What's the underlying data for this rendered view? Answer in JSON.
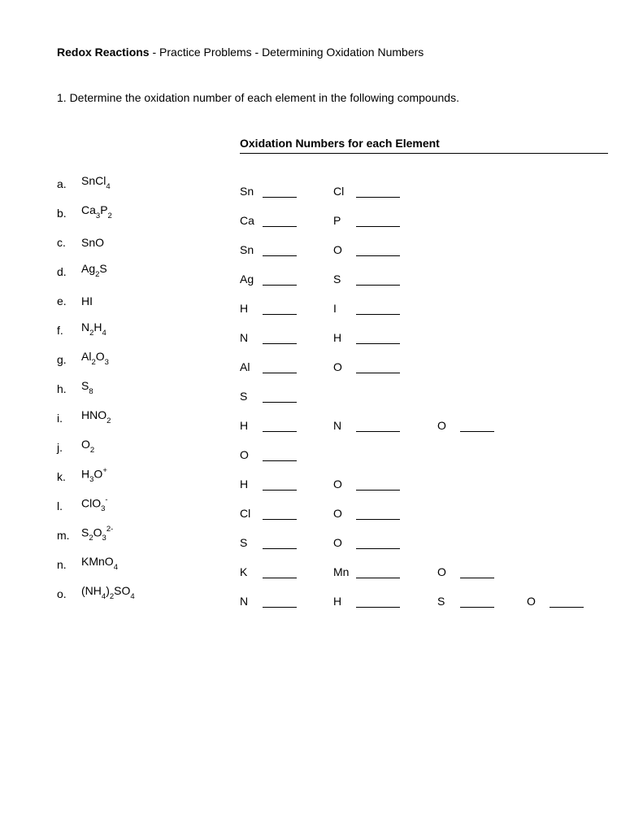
{
  "title_bold": "Redox Reactions",
  "title_rest": " - Practice Problems - Determining Oxidation Numbers",
  "instruction": "1. Determine the oxidation number of each element in the following compounds.",
  "section_header": "Oxidation Numbers for each Element",
  "rows": [
    {
      "letter": "a.",
      "compound_parts": [
        [
          "SnCl",
          ""
        ],
        [
          "4",
          "sub"
        ]
      ],
      "elements": [
        "Sn",
        "Cl"
      ]
    },
    {
      "letter": "b.",
      "compound_parts": [
        [
          "Ca",
          ""
        ],
        [
          "3",
          "sub"
        ],
        [
          "P",
          ""
        ],
        [
          "2",
          "sub"
        ]
      ],
      "elements": [
        "Ca",
        "P"
      ]
    },
    {
      "letter": "c.",
      "compound_parts": [
        [
          "SnO",
          ""
        ]
      ],
      "elements": [
        "Sn",
        "O"
      ]
    },
    {
      "letter": "d.",
      "compound_parts": [
        [
          "Ag",
          ""
        ],
        [
          "2",
          "sub"
        ],
        [
          "S",
          ""
        ]
      ],
      "elements": [
        "Ag",
        "S"
      ]
    },
    {
      "letter": "e.",
      "compound_parts": [
        [
          "HI",
          ""
        ]
      ],
      "elements": [
        "H",
        "I"
      ]
    },
    {
      "letter": "f.",
      "compound_parts": [
        [
          "N",
          ""
        ],
        [
          "2",
          "sub"
        ],
        [
          "H",
          ""
        ],
        [
          "4",
          "sub"
        ]
      ],
      "elements": [
        "N",
        "H"
      ]
    },
    {
      "letter": "g.",
      "compound_parts": [
        [
          "Al",
          ""
        ],
        [
          "2",
          "sub"
        ],
        [
          "O",
          ""
        ],
        [
          "3",
          "sub"
        ]
      ],
      "elements": [
        "Al",
        "O"
      ]
    },
    {
      "letter": "h.",
      "compound_parts": [
        [
          "S",
          ""
        ],
        [
          "8",
          "sub"
        ]
      ],
      "elements": [
        "S"
      ]
    },
    {
      "letter": "i.",
      "compound_parts": [
        [
          "HNO",
          ""
        ],
        [
          "2",
          "sub"
        ]
      ],
      "elements": [
        "H",
        "N",
        "O"
      ]
    },
    {
      "letter": "j.",
      "compound_parts": [
        [
          "O",
          ""
        ],
        [
          "2",
          "sub"
        ]
      ],
      "elements": [
        "O"
      ]
    },
    {
      "letter": "k.",
      "compound_parts": [
        [
          "H",
          ""
        ],
        [
          "3",
          "sub"
        ],
        [
          "O",
          ""
        ],
        [
          "+",
          "sup"
        ]
      ],
      "elements": [
        "H",
        "O"
      ]
    },
    {
      "letter": "l.",
      "compound_parts": [
        [
          "ClO",
          ""
        ],
        [
          "3",
          "sub"
        ],
        [
          "-",
          "sup"
        ]
      ],
      "elements": [
        "Cl",
        "O"
      ]
    },
    {
      "letter": "m.",
      "compound_parts": [
        [
          "S",
          ""
        ],
        [
          "2",
          "sub"
        ],
        [
          "O",
          ""
        ],
        [
          "3",
          "sub"
        ],
        [
          "2-",
          "sup"
        ]
      ],
      "elements": [
        "S",
        "O"
      ]
    },
    {
      "letter": "n.",
      "compound_parts": [
        [
          "KMnO",
          ""
        ],
        [
          "4",
          "sub"
        ]
      ],
      "elements": [
        "K",
        "Mn",
        "O"
      ]
    },
    {
      "letter": "o.",
      "compound_parts": [
        [
          "(NH",
          ""
        ],
        [
          "4",
          "sub"
        ],
        [
          ")",
          ""
        ],
        [
          "2",
          "sub"
        ],
        [
          "SO",
          ""
        ],
        [
          "4",
          "sub"
        ]
      ],
      "elements": [
        "N",
        "H",
        "S",
        "O"
      ]
    }
  ]
}
